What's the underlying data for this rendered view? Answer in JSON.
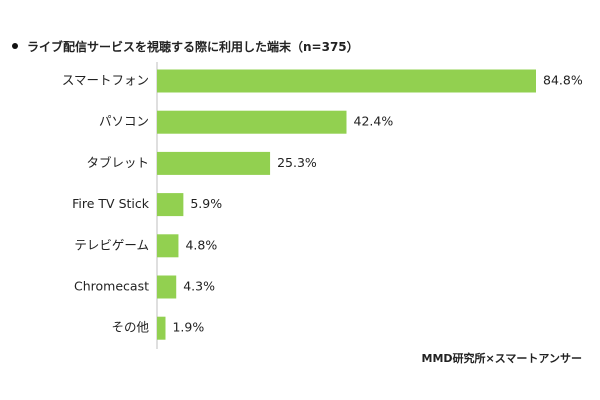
{
  "chart_data": {
    "type": "bar",
    "orientation": "horizontal",
    "title": "ライブ配信サービスを視聴する際に利用した端末（n=375）",
    "categories": [
      "スマートフォン",
      "パソコン",
      "タブレット",
      "Fire TV Stick",
      "テレビゲーム",
      "Chromecast",
      "その他"
    ],
    "values": [
      84.8,
      42.4,
      25.3,
      5.9,
      4.8,
      4.3,
      1.9
    ],
    "value_labels": [
      "84.8%",
      "42.4%",
      "25.3%",
      "5.9%",
      "4.8%",
      "4.3%",
      "1.9%"
    ],
    "unit": "%",
    "xlim": [
      0,
      100
    ],
    "grid": false,
    "legend": "none",
    "bar_color": "#92d050"
  },
  "source": "MMD研究所×スマートアンサー"
}
